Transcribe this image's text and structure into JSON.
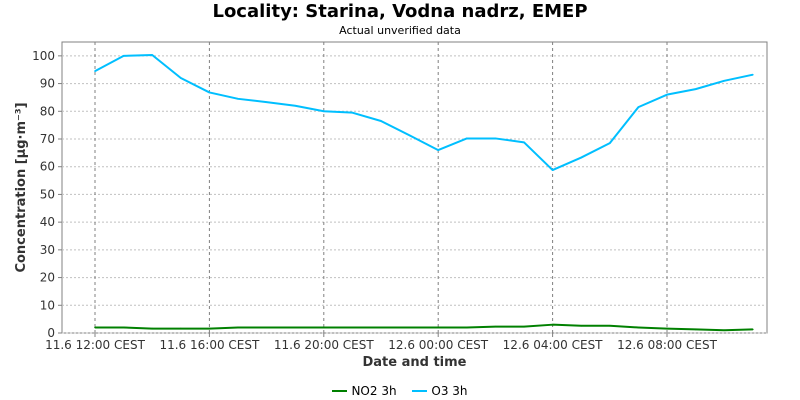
{
  "chart_data": {
    "type": "line",
    "title": "Locality: Starina, Vodna nadrz, EMEP",
    "subtitle": "Actual unverified data",
    "xlabel": "Date and time",
    "ylabel": "Concentration [µg·m⁻³]",
    "ylim": [
      0,
      105
    ],
    "yticks": [
      0,
      10,
      20,
      30,
      40,
      50,
      60,
      70,
      80,
      90,
      100
    ],
    "x": [
      "11.6 12:00",
      "11.6 13:00",
      "11.6 14:00",
      "11.6 15:00",
      "11.6 16:00",
      "11.6 17:00",
      "11.6 18:00",
      "11.6 19:00",
      "11.6 20:00",
      "11.6 21:00",
      "11.6 22:00",
      "11.6 23:00",
      "12.6 00:00",
      "12.6 01:00",
      "12.6 02:00",
      "12.6 03:00",
      "12.6 04:00",
      "12.6 05:00",
      "12.6 06:00",
      "12.6 07:00",
      "12.6 08:00",
      "12.6 09:00",
      "12.6 10:00",
      "12.6 11:00"
    ],
    "xticks": [
      {
        "index": 0,
        "label": "11.6 12:00 CEST"
      },
      {
        "index": 4,
        "label": "11.6 16:00 CEST"
      },
      {
        "index": 8,
        "label": "11.6 20:00 CEST"
      },
      {
        "index": 12,
        "label": "12.6 00:00 CEST"
      },
      {
        "index": 16,
        "label": "12.6 04:00 CEST"
      },
      {
        "index": 20,
        "label": "12.6 08:00 CEST"
      }
    ],
    "grid": true,
    "legend_position": "bottom-center",
    "series": [
      {
        "name": "NO2 3h",
        "color": "#008000",
        "values": [
          2.0,
          2.0,
          1.6,
          1.6,
          1.6,
          2.0,
          2.0,
          2.0,
          2.0,
          2.0,
          2.0,
          2.0,
          2.0,
          2.0,
          2.3,
          2.3,
          3.0,
          2.6,
          2.6,
          2.0,
          1.6,
          1.3,
          1.0,
          1.3
        ]
      },
      {
        "name": "O3 3h",
        "color": "#00bfff",
        "values": [
          94.5,
          100.0,
          100.3,
          92.0,
          86.8,
          84.5,
          83.3,
          82.0,
          80.0,
          79.5,
          76.5,
          71.3,
          66.0,
          70.2,
          70.2,
          68.8,
          58.8,
          63.3,
          68.5,
          81.5,
          86.0,
          88.0,
          91.0,
          93.2
        ]
      }
    ]
  }
}
